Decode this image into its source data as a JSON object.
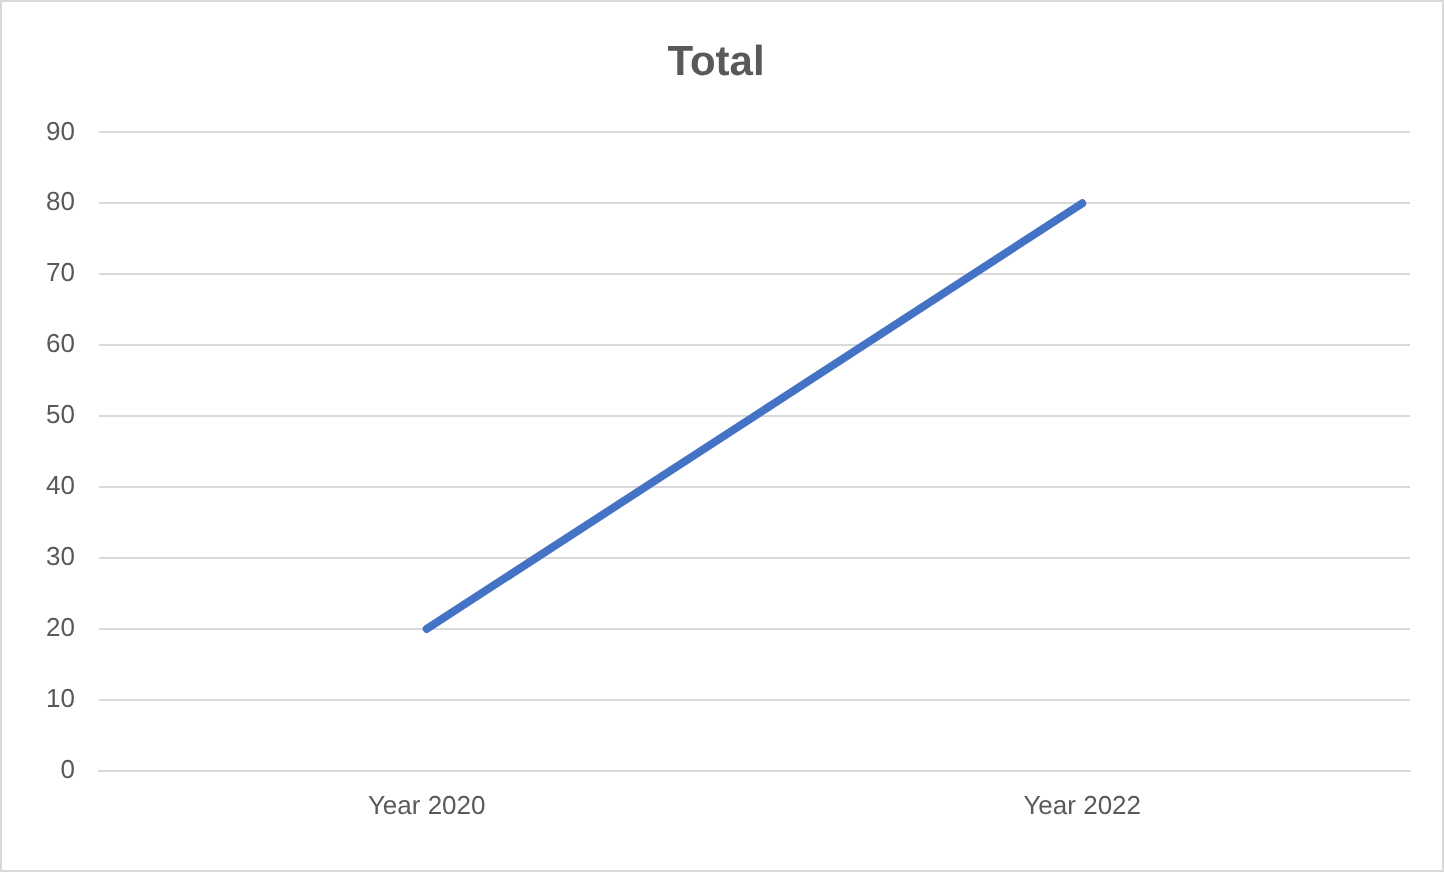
{
  "chart_data": {
    "type": "line",
    "title": "Total",
    "categories": [
      "Year 2020",
      "Year 2022"
    ],
    "series": [
      {
        "color": "#4472c4",
        "values": [
          20,
          80
        ]
      }
    ],
    "ylim": [
      0,
      90
    ],
    "yticks": [
      0,
      10,
      20,
      30,
      40,
      50,
      60,
      70,
      80,
      90
    ],
    "grid": "y",
    "legend": false,
    "marker": "none",
    "line_style": "solid"
  }
}
